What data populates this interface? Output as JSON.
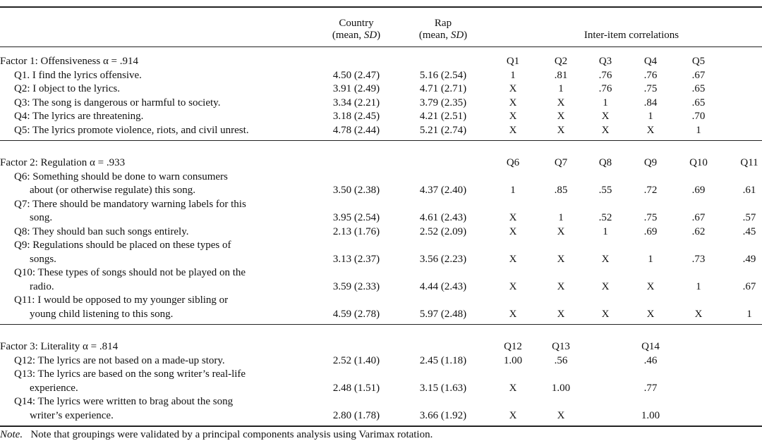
{
  "header": {
    "columns": [
      {
        "line1": "Country",
        "pre": "(mean, ",
        "em": "SD",
        "post": ")"
      },
      {
        "line1": "Rap",
        "pre": "(mean, ",
        "em": "SD",
        "post": ")"
      }
    ],
    "correlations": "Inter-item correlations"
  },
  "sections": [
    {
      "title": "Factor 1: Offensiveness α = .914",
      "corr_headers": [
        "Q1",
        "Q2",
        "Q3",
        "Q4",
        "Q5"
      ],
      "rows": [
        {
          "item": [
            "Q1. I find the lyrics offensive."
          ],
          "country": "4.50 (2.47)",
          "rap": "5.16 (2.54)",
          "corr": [
            "1",
            ".81",
            ".76",
            ".76",
            ".67"
          ]
        },
        {
          "item": [
            "Q2: I object to the lyrics."
          ],
          "country": "3.91 (2.49)",
          "rap": "4.71 (2.71)",
          "corr": [
            "X",
            "1",
            ".76",
            ".75",
            ".65"
          ]
        },
        {
          "item": [
            "Q3: The song is dangerous or harmful to society."
          ],
          "country": "3.34 (2.21)",
          "rap": "3.79 (2.35)",
          "corr": [
            "X",
            "X",
            "1",
            ".84",
            ".65"
          ]
        },
        {
          "item": [
            "Q4: The lyrics are threatening."
          ],
          "country": "3.18 (2.45)",
          "rap": "4.21 (2.51)",
          "corr": [
            "X",
            "X",
            "X",
            "1",
            ".70"
          ]
        },
        {
          "item": [
            "Q5: The lyrics promote violence, riots, and civil unrest."
          ],
          "country": "4.78 (2.44)",
          "rap": "5.21 (2.74)",
          "corr": [
            "X",
            "X",
            "X",
            "X",
            "1"
          ]
        }
      ]
    },
    {
      "title": "Factor 2: Regulation α = .933",
      "corr_headers": [
        "Q6",
        "Q7",
        "Q8",
        "Q9",
        "Q10",
        "Q11"
      ],
      "rows": [
        {
          "item": [
            "Q6: Something should be done to warn consumers",
            "about (or otherwise regulate) this song."
          ],
          "country": "3.50 (2.38)",
          "rap": "4.37 (2.40)",
          "corr": [
            "1",
            ".85",
            ".55",
            ".72",
            ".69",
            ".61"
          ]
        },
        {
          "item": [
            "Q7: There should be mandatory warning labels for this",
            "song."
          ],
          "country": "3.95 (2.54)",
          "rap": "4.61 (2.43)",
          "corr": [
            "X",
            "1",
            ".52",
            ".75",
            ".67",
            ".57"
          ]
        },
        {
          "item": [
            "Q8: They should ban such songs entirely."
          ],
          "country": "2.13 (1.76)",
          "rap": "2.52 (2.09)",
          "corr": [
            "X",
            "X",
            "1",
            ".69",
            ".62",
            ".45"
          ]
        },
        {
          "item": [
            "Q9: Regulations should be placed on these types of",
            "songs."
          ],
          "country": "3.13 (2.37)",
          "rap": "3.56 (2.23)",
          "corr": [
            "X",
            "X",
            "X",
            "1",
            ".73",
            ".49"
          ]
        },
        {
          "item": [
            "Q10: These types of songs should not be played on the",
            "radio."
          ],
          "country": "3.59 (2.33)",
          "rap": "4.44 (2.43)",
          "corr": [
            "X",
            "X",
            "X",
            "X",
            "1",
            ".67"
          ]
        },
        {
          "item": [
            "Q11: I would be opposed to my younger sibling or",
            "young child listening to this song."
          ],
          "country": "4.59 (2.78)",
          "rap": "5.97 (2.48)",
          "corr": [
            "X",
            "X",
            "X",
            "X",
            "X",
            "1"
          ]
        }
      ]
    },
    {
      "title": "Factor 3: Literality α = .814",
      "corr_headers": [
        "Q12",
        "Q13",
        "Q14"
      ],
      "rows": [
        {
          "item": [
            "Q12: The lyrics are not based on a made-up story."
          ],
          "country": "2.52 (1.40)",
          "rap": "2.45 (1.18)",
          "corr": [
            "1.00",
            ".56",
            ".46"
          ]
        },
        {
          "item": [
            "Q13: The lyrics are based on the song writer’s real-life",
            "experience."
          ],
          "country": "2.48 (1.51)",
          "rap": "3.15 (1.63)",
          "corr": [
            "X",
            "1.00",
            ".77"
          ]
        },
        {
          "item": [
            "Q14: The lyrics were written to brag about the song",
            "writer’s experience."
          ],
          "country": "2.80 (1.78)",
          "rap": "3.66 (1.92)",
          "corr": [
            "X",
            "X",
            "1.00"
          ]
        }
      ]
    }
  ],
  "note": {
    "label": "Note.",
    "text": "Note that groupings were validated by a principal components analysis using Varimax rotation."
  }
}
